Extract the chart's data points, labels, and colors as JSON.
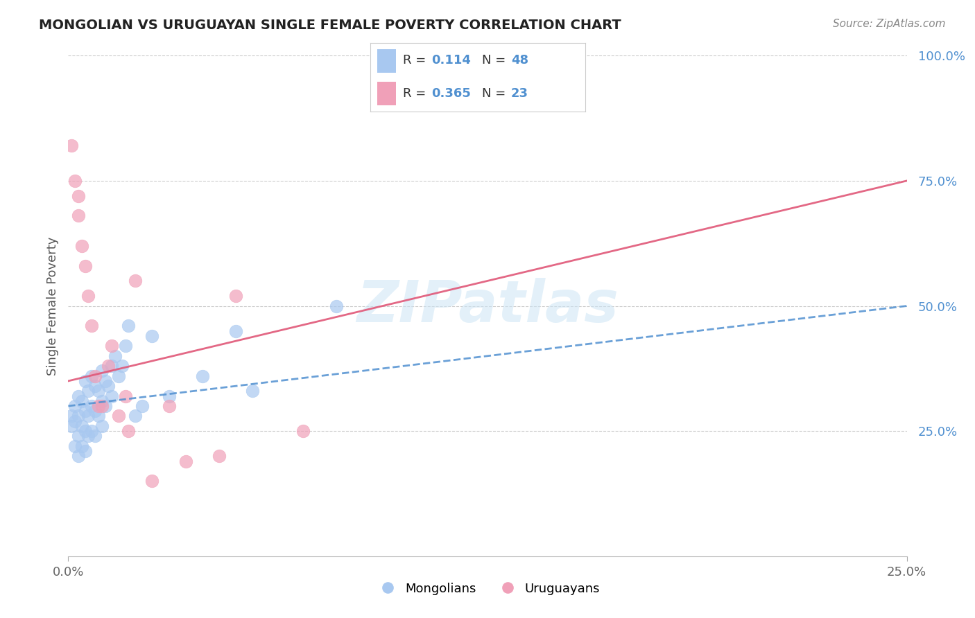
{
  "title": "MONGOLIAN VS URUGUAYAN SINGLE FEMALE POVERTY CORRELATION CHART",
  "source": "Source: ZipAtlas.com",
  "ylabel": "Single Female Poverty",
  "xlim": [
    0.0,
    0.25
  ],
  "ylim": [
    0.0,
    1.0
  ],
  "y_ticks": [
    0.25,
    0.5,
    0.75,
    1.0
  ],
  "y_tick_labels": [
    "25.0%",
    "50.0%",
    "75.0%",
    "100.0%"
  ],
  "mongolian_color": "#a8c8f0",
  "uruguayan_color": "#f0a0b8",
  "mongolian_line_color": "#5090d0",
  "uruguayan_line_color": "#e05878",
  "R_mongolian": 0.114,
  "N_mongolian": 48,
  "R_uruguayan": 0.365,
  "N_uruguayan": 23,
  "watermark": "ZIPatlas",
  "background_color": "#ffffff",
  "legend_labels": [
    "Mongolians",
    "Uruguayans"
  ],
  "mongolian_x": [
    0.001,
    0.001,
    0.002,
    0.002,
    0.002,
    0.003,
    0.003,
    0.003,
    0.003,
    0.004,
    0.004,
    0.004,
    0.005,
    0.005,
    0.005,
    0.005,
    0.006,
    0.006,
    0.006,
    0.007,
    0.007,
    0.007,
    0.008,
    0.008,
    0.008,
    0.009,
    0.009,
    0.01,
    0.01,
    0.01,
    0.011,
    0.011,
    0.012,
    0.013,
    0.013,
    0.014,
    0.015,
    0.016,
    0.017,
    0.018,
    0.02,
    0.022,
    0.025,
    0.03,
    0.04,
    0.05,
    0.055,
    0.08
  ],
  "mongolian_y": [
    0.28,
    0.26,
    0.3,
    0.27,
    0.22,
    0.32,
    0.28,
    0.24,
    0.2,
    0.31,
    0.26,
    0.22,
    0.35,
    0.29,
    0.25,
    0.21,
    0.33,
    0.28,
    0.24,
    0.36,
    0.3,
    0.25,
    0.34,
    0.29,
    0.24,
    0.33,
    0.28,
    0.37,
    0.31,
    0.26,
    0.35,
    0.3,
    0.34,
    0.38,
    0.32,
    0.4,
    0.36,
    0.38,
    0.42,
    0.46,
    0.28,
    0.3,
    0.44,
    0.32,
    0.36,
    0.45,
    0.33,
    0.5
  ],
  "uruguayan_x": [
    0.001,
    0.002,
    0.003,
    0.003,
    0.004,
    0.005,
    0.006,
    0.007,
    0.008,
    0.009,
    0.01,
    0.012,
    0.013,
    0.015,
    0.017,
    0.018,
    0.02,
    0.025,
    0.03,
    0.035,
    0.045,
    0.05,
    0.07
  ],
  "uruguayan_y": [
    0.82,
    0.75,
    0.72,
    0.68,
    0.62,
    0.58,
    0.52,
    0.46,
    0.36,
    0.3,
    0.3,
    0.38,
    0.42,
    0.28,
    0.32,
    0.25,
    0.55,
    0.15,
    0.3,
    0.19,
    0.2,
    0.52,
    0.25
  ],
  "mon_line_x0": 0.0,
  "mon_line_y0": 0.3,
  "mon_line_x1": 0.25,
  "mon_line_y1": 0.5,
  "uru_line_x0": 0.0,
  "uru_line_y0": 0.35,
  "uru_line_x1": 0.25,
  "uru_line_y1": 0.75
}
